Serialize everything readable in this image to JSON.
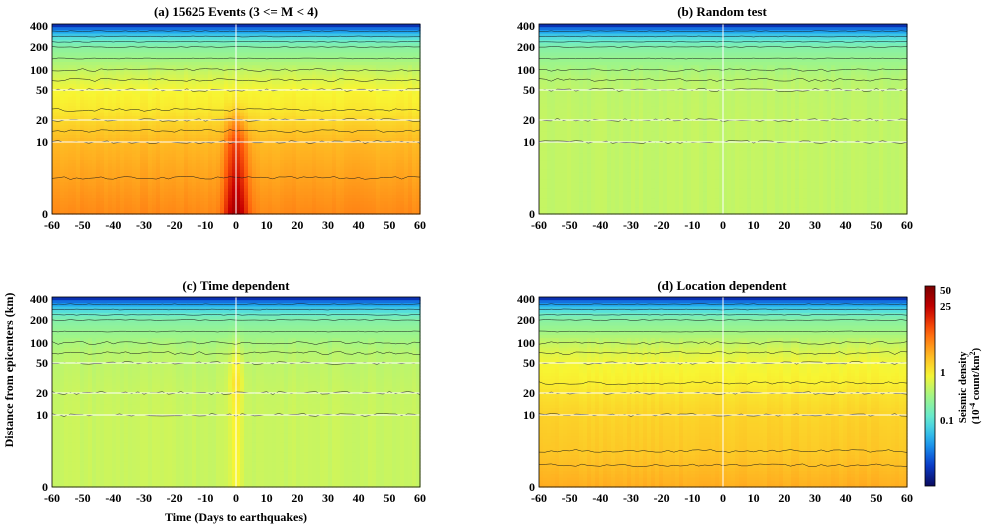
{
  "figure": {
    "xlabel": "Time (Days to earthquakes)",
    "ylabel": "Distance from epicenters (km)",
    "colorbar": {
      "label_line1": "Seismic density",
      "label_line2": "(10",
      "label_exp1": "-4",
      "label_line2b": " count/km",
      "label_exp2": "2",
      "label_line2c": ")",
      "ticks": [
        {
          "label": "50",
          "value": 50
        },
        {
          "label": "25",
          "value": 25
        },
        {
          "label": "1",
          "value": 1
        },
        {
          "label": "0.1",
          "value": 0.1
        }
      ],
      "range": [
        0.01,
        50
      ],
      "scale": "log"
    },
    "colormap": [
      "#0a0a5e",
      "#0a3fd0",
      "#1fa5f0",
      "#5fe8d8",
      "#9df58a",
      "#f8f532",
      "#ffb020",
      "#ff5a0a",
      "#c80000",
      "#7a0000"
    ]
  },
  "chart_data": [
    {
      "type": "heatmap",
      "title": "(a)  15625   Events  (3 <= M < 4)",
      "x_ticks": [
        "-60",
        "-50",
        "-40",
        "-30",
        "-20",
        "-10",
        "0",
        "10",
        "20",
        "30",
        "40",
        "50",
        "60"
      ],
      "y_ticks": [
        "0",
        "10",
        "20",
        "50",
        "100",
        "200",
        "400"
      ],
      "x_range": [
        -60,
        60
      ],
      "y_range": [
        0,
        400
      ],
      "y_scale": "log-like",
      "level_distance_km": [
        0,
        5,
        10,
        15,
        20,
        30,
        50,
        75,
        100,
        150,
        200,
        250,
        300,
        350,
        400
      ],
      "level_density": [
        4.5,
        3.4,
        2.6,
        2.1,
        1.7,
        1.35,
        1.1,
        0.85,
        0.65,
        0.45,
        0.32,
        0.22,
        0.12,
        0.06,
        0.02
      ],
      "peak_at_day_0": {
        "density_at_0km": 25,
        "width_days": 3
      }
    },
    {
      "type": "heatmap",
      "title": "(b)  Random test",
      "x_ticks": [
        "-60",
        "-50",
        "-40",
        "-30",
        "-20",
        "-10",
        "0",
        "10",
        "20",
        "30",
        "40",
        "50",
        "60"
      ],
      "y_ticks": [
        "0",
        "10",
        "20",
        "50",
        "100",
        "200",
        "400"
      ],
      "x_range": [
        -60,
        60
      ],
      "y_range": [
        0,
        400
      ],
      "level_distance_km": [
        0,
        10,
        20,
        50,
        75,
        100,
        150,
        200,
        250,
        300,
        350,
        400
      ],
      "level_density": [
        0.65,
        0.65,
        0.65,
        0.62,
        0.58,
        0.5,
        0.4,
        0.3,
        0.2,
        0.12,
        0.06,
        0.02
      ]
    },
    {
      "type": "heatmap",
      "title": "(c)  Time dependent",
      "x_ticks": [
        "-60",
        "-50",
        "-40",
        "-30",
        "-20",
        "-10",
        "0",
        "10",
        "20",
        "30",
        "40",
        "50",
        "60"
      ],
      "y_ticks": [
        "0",
        "10",
        "20",
        "50",
        "100",
        "200",
        "400"
      ],
      "x_range": [
        -60,
        60
      ],
      "y_range": [
        0,
        400
      ],
      "level_distance_km": [
        0,
        10,
        20,
        50,
        75,
        100,
        150,
        200,
        250,
        300,
        350,
        400
      ],
      "level_density": [
        0.7,
        0.7,
        0.68,
        0.62,
        0.58,
        0.5,
        0.4,
        0.3,
        0.2,
        0.12,
        0.06,
        0.02
      ],
      "peak_at_day_0": {
        "density_at_50km": 0.9,
        "width_days": 2
      }
    },
    {
      "type": "heatmap",
      "title": "(d)  Location dependent",
      "x_ticks": [
        "-60",
        "-50",
        "-40",
        "-30",
        "-20",
        "-10",
        "0",
        "10",
        "20",
        "30",
        "40",
        "50",
        "60"
      ],
      "y_ticks": [
        "0",
        "10",
        "20",
        "50",
        "100",
        "200",
        "400"
      ],
      "x_range": [
        -60,
        60
      ],
      "y_range": [
        0,
        400
      ],
      "level_distance_km": [
        0,
        3,
        5,
        10,
        20,
        30,
        50,
        75,
        100,
        150,
        200,
        250,
        300,
        350,
        400
      ],
      "level_density": [
        3.0,
        2.4,
        2.1,
        1.8,
        1.45,
        1.25,
        1.05,
        0.85,
        0.65,
        0.45,
        0.32,
        0.22,
        0.12,
        0.06,
        0.02
      ]
    }
  ]
}
